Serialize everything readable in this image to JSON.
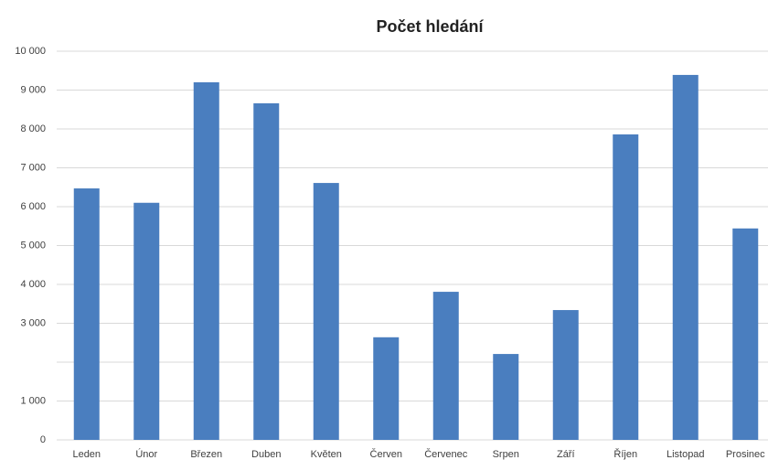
{
  "chart_data": {
    "type": "bar",
    "title": "Počet hledání",
    "categories": [
      "Leden",
      "Únor",
      "Březen",
      "Duben",
      "Květen",
      "Červen",
      "Červenec",
      "Srpen",
      "Září",
      "Říjen",
      "Listopad",
      "Prosinec"
    ],
    "values": [
      6470,
      6100,
      9200,
      8660,
      6610,
      2640,
      3810,
      2210,
      3340,
      7860,
      9390,
      5440
    ],
    "color": "#4a7ebf",
    "ylim": [
      0,
      10000
    ],
    "yticks": [
      0,
      {
        "value": 1000,
        "label": "1 000"
      },
      {
        "value": 2000,
        "label": null
      },
      {
        "value": 3000,
        "label": "3 000"
      },
      {
        "value": 4000,
        "label": "4 000"
      },
      {
        "value": 5000,
        "label": "5 000"
      },
      {
        "value": 6000,
        "label": "6 000"
      },
      {
        "value": 7000,
        "label": "7 000"
      },
      {
        "value": 8000,
        "label": "8 000"
      },
      {
        "value": 9000,
        "label": "9 000"
      },
      {
        "value": 10000,
        "label": "10 000"
      }
    ],
    "grid": true
  }
}
